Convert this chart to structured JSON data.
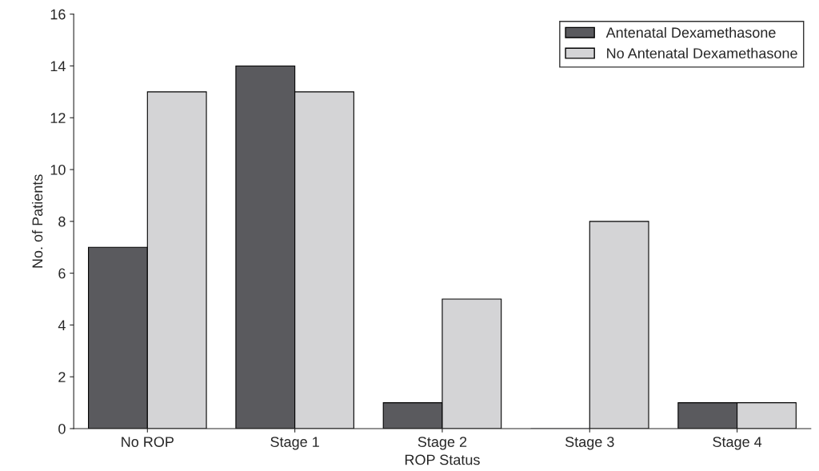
{
  "chart_data": {
    "type": "bar",
    "xlabel": "ROP Status",
    "ylabel": "No. of Patients",
    "categories": [
      "No ROP",
      "Stage 1",
      "Stage 2",
      "Stage 3",
      "Stage 4"
    ],
    "series": [
      {
        "name": "Antenatal Dexamethasone",
        "color": "#5a5a5e",
        "values": [
          7,
          14,
          1,
          0,
          1
        ]
      },
      {
        "name": "No Antenatal Dexamethasone",
        "color": "#d4d4d6",
        "values": [
          13,
          13,
          5,
          8,
          1
        ]
      }
    ],
    "ylim": [
      0,
      16
    ],
    "yticks": [
      0,
      2,
      4,
      6,
      8,
      10,
      12,
      14,
      16
    ],
    "grid": false,
    "legend": "top right"
  }
}
